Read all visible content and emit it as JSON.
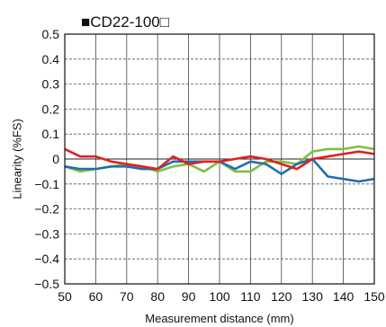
{
  "chart_data": {
    "type": "line",
    "title": "■CD22-100□",
    "xlabel": "Measurement distance (mm)",
    "ylabel": "Linearity (%FS)",
    "xlim": [
      50,
      150
    ],
    "ylim": [
      -0.5,
      0.5
    ],
    "x_ticks": [
      "50",
      "60",
      "70",
      "80",
      "90",
      "100",
      "110",
      "120",
      "130",
      "140",
      "150"
    ],
    "y_ticks": [
      "0.5",
      "0.4",
      "0.3",
      "0.2",
      "0.1",
      "0",
      "−0.1",
      "−0.2",
      "−0.3",
      "−0.4",
      "−0.5"
    ],
    "grid": true,
    "x": [
      50,
      55,
      60,
      65,
      70,
      75,
      80,
      85,
      90,
      95,
      100,
      105,
      110,
      115,
      120,
      125,
      130,
      135,
      140,
      145,
      150
    ],
    "series": [
      {
        "color": "#7fbf3f",
        "values": [
          -0.03,
          -0.05,
          -0.04,
          -0.03,
          -0.02,
          -0.03,
          -0.05,
          -0.03,
          -0.02,
          -0.05,
          -0.01,
          -0.05,
          -0.05,
          -0.01,
          -0.01,
          -0.02,
          0.03,
          0.04,
          0.04,
          0.05,
          0.04
        ]
      },
      {
        "color": "#1f6fb2",
        "values": [
          -0.03,
          -0.04,
          -0.04,
          -0.03,
          -0.03,
          -0.04,
          -0.04,
          -0.01,
          -0.01,
          -0.01,
          -0.01,
          -0.04,
          -0.01,
          -0.02,
          -0.06,
          -0.02,
          0.0,
          -0.07,
          -0.08,
          -0.09,
          -0.08
        ]
      },
      {
        "color": "#e02020",
        "values": [
          0.04,
          0.01,
          0.01,
          -0.01,
          -0.02,
          -0.03,
          -0.04,
          0.01,
          -0.02,
          -0.01,
          -0.01,
          0.0,
          0.01,
          0.0,
          -0.02,
          -0.04,
          0.0,
          0.01,
          0.02,
          0.03,
          0.02
        ]
      }
    ]
  }
}
